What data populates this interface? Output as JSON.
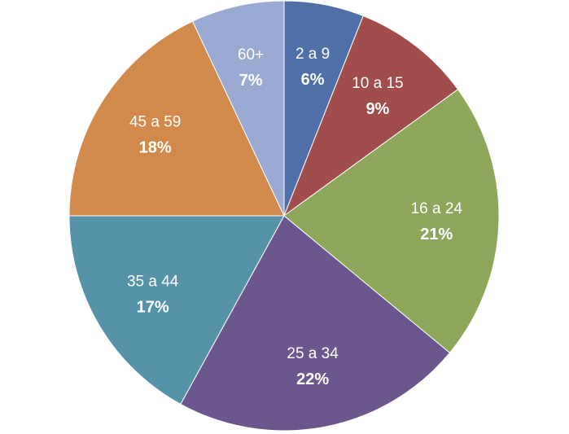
{
  "chart_data": {
    "type": "pie",
    "title": "",
    "start_angle_deg": 0,
    "direction": "clockwise",
    "legend": "none",
    "categories": [
      "2 a 9",
      "10 a 15",
      "16 a 24",
      "25 a 34",
      "35 a 44",
      "45 a 59",
      "60+"
    ],
    "values": [
      6,
      9,
      21,
      22,
      17,
      18,
      7
    ],
    "value_labels": [
      "6%",
      "9%",
      "21%",
      "22%",
      "17%",
      "18%",
      "7%"
    ],
    "colors": [
      "#4f6fa8",
      "#a14d4c",
      "#8da65a",
      "#6b578d",
      "#5693a9",
      "#d18a4b",
      "#9aaad2"
    ]
  }
}
